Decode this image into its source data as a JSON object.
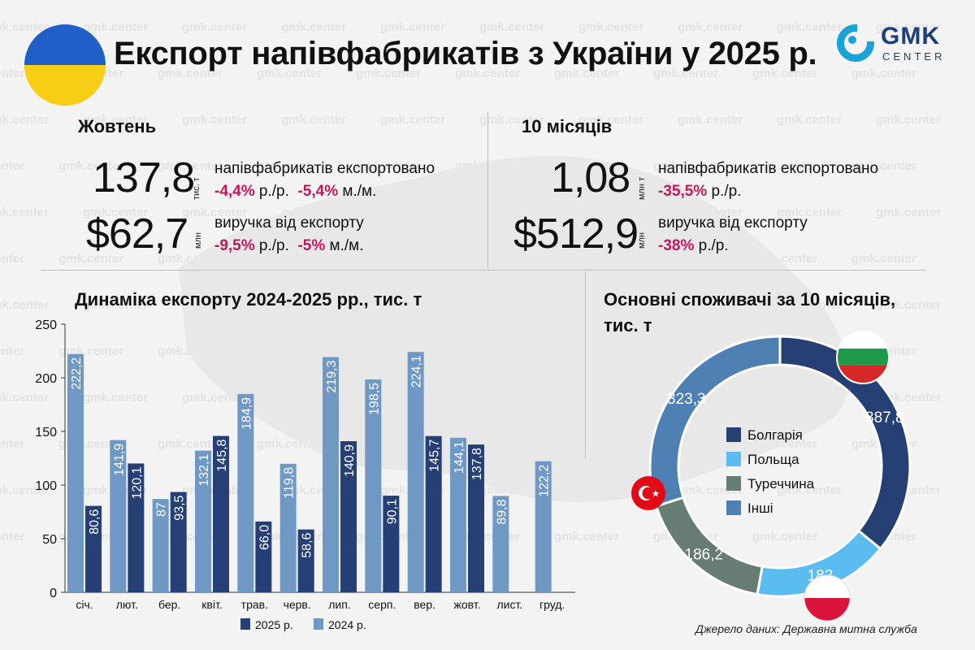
{
  "header": {
    "title": "Експорт напівфабрикатів з України у 2025 р.",
    "logo_main": "GMK",
    "logo_sub": "CENTER"
  },
  "watermark": "gmk.center",
  "october": {
    "heading": "Жовтень",
    "volume_value": "137,8",
    "volume_unit": "тис. т",
    "volume_desc": "напівфабрикатів експортовано",
    "volume_yoy": "-4,4%",
    "volume_yoy_label": "р./р.",
    "volume_mom": "-5,4%",
    "volume_mom_label": "м./м.",
    "revenue_value": "$62,7",
    "revenue_unit": "млн",
    "revenue_desc": "виручка від експорту",
    "revenue_yoy": "-9,5%",
    "revenue_yoy_label": "р./р.",
    "revenue_mom": "-5%",
    "revenue_mom_label": "м./м."
  },
  "ten_months": {
    "heading": "10 місяців",
    "volume_value": "1,08",
    "volume_unit": "млн т",
    "volume_desc": "напівфабрикатів експортовано",
    "volume_yoy": "-35,5%",
    "volume_yoy_label": "р./р.",
    "revenue_value": "$512,9",
    "revenue_unit": "млн",
    "revenue_desc": "виручка від експорту",
    "revenue_yoy": "-38%",
    "revenue_yoy_label": "р./р."
  },
  "bar_section": {
    "heading": "Динаміка експорту 2024-2025 рр., тис. т"
  },
  "donut_section": {
    "heading_line1": "Основні споживачі за 10 місяців,",
    "heading_line2": "тис. т"
  },
  "source": "Джерело даних: Державна митна служба",
  "colors": {
    "dark_blue": "#263f75",
    "light_blue": "#6f98c5",
    "negative": "#c2185b",
    "bulgaria": "#263f75",
    "poland": "#5bbcf2",
    "turkey": "#677c72",
    "other": "#4f80b4"
  },
  "chart_data": [
    {
      "type": "bar",
      "title": "Динаміка експорту 2024-2025 рр., тис. т",
      "categories": [
        "січ.",
        "лют.",
        "бер.",
        "квіт.",
        "трав.",
        "черв.",
        "лип.",
        "серп.",
        "вер.",
        "жовт.",
        "лист.",
        "груд."
      ],
      "series": [
        {
          "name": "2024 р.",
          "color": "#6f98c5",
          "values": [
            222.2,
            141.9,
            87,
            132.1,
            184.9,
            119.8,
            219.3,
            198.5,
            224.1,
            144.1,
            89.8,
            122.2
          ],
          "labels": [
            "222,2",
            "141,9",
            "87",
            "132,1",
            "184,9",
            "119,8",
            "219,3",
            "198,5",
            "224,1",
            "144,1",
            "89,8",
            "122,2"
          ]
        },
        {
          "name": "2025 р.",
          "color": "#263f75",
          "values": [
            80.6,
            120.1,
            93.5,
            145.8,
            66.0,
            58.6,
            140.9,
            90.1,
            145.7,
            137.8,
            null,
            null
          ],
          "labels": [
            "80,6",
            "120,1",
            "93,5",
            "145,8",
            "66,0",
            "58,6",
            "140,9",
            "90,1",
            "145,7",
            "137,8",
            null,
            null
          ]
        }
      ],
      "legend_order": [
        "2025 р.",
        "2024 р."
      ],
      "y_ticks": [
        0,
        50,
        100,
        150,
        200,
        250
      ],
      "ylim": [
        0,
        250
      ],
      "grid": false,
      "legend_position": "bottom"
    },
    {
      "type": "pie",
      "variant": "donut",
      "title": "Основні споживачі за 10 місяців, тис. т",
      "slices": [
        {
          "name": "Болгарія",
          "value": 387.8,
          "label": "387,8",
          "color": "#263f75"
        },
        {
          "name": "Польща",
          "value": 182,
          "label": "182",
          "color": "#5bbcf2"
        },
        {
          "name": "Туреччина",
          "value": 186.2,
          "label": "186,2",
          "color": "#677c72"
        },
        {
          "name": "Інші",
          "value": 323.3,
          "label": "323,3",
          "color": "#4f80b4"
        }
      ],
      "legend_position": "center"
    }
  ]
}
